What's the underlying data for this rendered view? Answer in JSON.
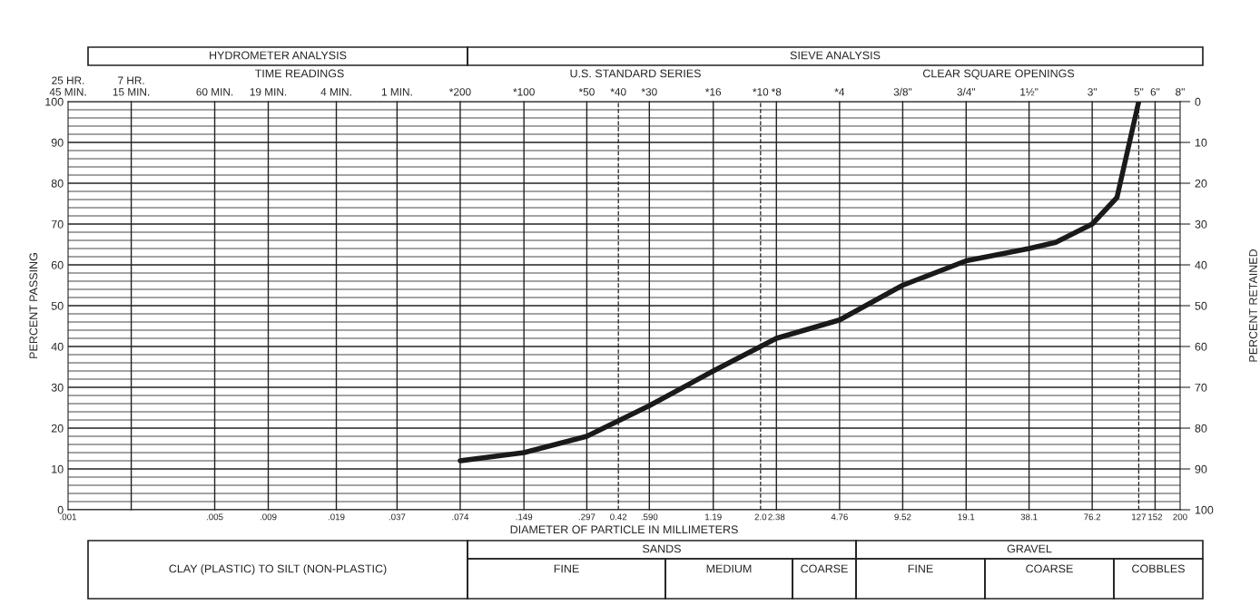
{
  "chart_data": {
    "type": "line",
    "xlabel": "DIAMETER OF PARTICLE IN MILLIMETERS",
    "ylabel": "PERCENT PASSING",
    "y2label": "PERCENT RETAINED",
    "log": "x",
    "grid": "y",
    "legend": false,
    "marker": "none",
    "line_style": "solid",
    "series": [
      {
        "color": "#1a1a1a",
        "x": [
          0.074,
          0.149,
          0.297,
          0.59,
          1.19,
          2.38,
          4.76,
          9.52,
          19.1,
          38.1,
          51,
          76.2,
          100,
          127
        ],
        "values": [
          12,
          14,
          18,
          25.5,
          34,
          42,
          46.5,
          55,
          61,
          64,
          65.5,
          70,
          76.5,
          100
        ]
      }
    ],
    "xlim": [
      0.001,
      200
    ],
    "xticks": [
      {
        "value": 0.001,
        "label": ".001"
      },
      {
        "value": 0.005,
        "label": ".005"
      },
      {
        "value": 0.009,
        "label": ".009"
      },
      {
        "value": 0.019,
        "label": ".019"
      },
      {
        "value": 0.037,
        "label": ".037"
      },
      {
        "value": 0.074,
        "label": ".074"
      },
      {
        "value": 0.149,
        "label": ".149"
      },
      {
        "value": 0.297,
        "label": ".297"
      },
      0.42,
      {
        "value": 0.59,
        "label": ".590"
      },
      1.19,
      {
        "value": 2.0,
        "label": "2.0"
      },
      2.38,
      4.76,
      9.52,
      19.1,
      38.1,
      76.2,
      127,
      152,
      200
    ],
    "ylim": [
      0,
      100
    ],
    "yticks": [
      0,
      {
        "value": 2,
        "label": null
      },
      {
        "value": 4,
        "label": null
      },
      {
        "value": 6,
        "label": null
      },
      {
        "value": 8,
        "label": null
      },
      10,
      {
        "value": 12,
        "label": null
      },
      {
        "value": 14,
        "label": null
      },
      {
        "value": 16,
        "label": null
      },
      {
        "value": 18,
        "label": null
      },
      20,
      {
        "value": 22,
        "label": null
      },
      {
        "value": 24,
        "label": null
      },
      {
        "value": 26,
        "label": null
      },
      {
        "value": 28,
        "label": null
      },
      30,
      {
        "value": 32,
        "label": null
      },
      {
        "value": 34,
        "label": null
      },
      {
        "value": 36,
        "label": null
      },
      {
        "value": 38,
        "label": null
      },
      40,
      {
        "value": 42,
        "label": null
      },
      {
        "value": 44,
        "label": null
      },
      {
        "value": 46,
        "label": null
      },
      {
        "value": 48,
        "label": null
      },
      50,
      {
        "value": 52,
        "label": null
      },
      {
        "value": 54,
        "label": null
      },
      {
        "value": 56,
        "label": null
      },
      {
        "value": 58,
        "label": null
      },
      60,
      {
        "value": 62,
        "label": null
      },
      {
        "value": 64,
        "label": null
      },
      {
        "value": 66,
        "label": null
      },
      {
        "value": 68,
        "label": null
      },
      70,
      {
        "value": 72,
        "label": null
      },
      {
        "value": 74,
        "label": null
      },
      {
        "value": 76,
        "label": null
      },
      {
        "value": 78,
        "label": null
      },
      80,
      {
        "value": 82,
        "label": null
      },
      {
        "value": 84,
        "label": null
      },
      {
        "value": 86,
        "label": null
      },
      {
        "value": 88,
        "label": null
      },
      90,
      {
        "value": 92,
        "label": null
      },
      {
        "value": 94,
        "label": null
      },
      {
        "value": 96,
        "label": null
      },
      {
        "value": 98,
        "label": null
      },
      100
    ],
    "y2lim": [
      100,
      0
    ],
    "y2ticks": [
      0,
      10,
      20,
      30,
      40,
      50,
      60,
      70,
      80,
      90,
      100
    ],
    "ref_lines": [
      {
        "axis": "x",
        "value": 0.002
      },
      {
        "axis": "x",
        "value": 0.005
      },
      {
        "axis": "x",
        "value": 0.009
      },
      {
        "axis": "x",
        "value": 0.019
      },
      {
        "axis": "x",
        "value": 0.037
      },
      {
        "axis": "x",
        "value": 0.074
      },
      {
        "axis": "x",
        "value": 0.149
      },
      {
        "axis": "x",
        "value": 0.297
      },
      {
        "axis": "x",
        "value": 0.42,
        "line_style": "dashed"
      },
      {
        "axis": "x",
        "value": 0.59
      },
      {
        "axis": "x",
        "value": 1.19
      },
      {
        "axis": "x",
        "value": 2.0,
        "line_style": "dashed"
      },
      {
        "axis": "x",
        "value": 2.38
      },
      {
        "axis": "x",
        "value": 4.76
      },
      {
        "axis": "x",
        "value": 9.52
      },
      {
        "axis": "x",
        "value": 19.1
      },
      {
        "axis": "x",
        "value": 38.1
      },
      {
        "axis": "x",
        "value": 76.2
      },
      {
        "axis": "x",
        "value": 127,
        "line_style": "dashed"
      },
      {
        "axis": "x",
        "value": 152
      }
    ],
    "annotations": [
      "HYDROMETER ANALYSIS",
      "SIEVE ANALYSIS",
      "TIME READINGS",
      "U.S. STANDARD SERIES",
      "CLEAR SQUARE OPENINGS",
      "CLAY (PLASTIC) TO SILT (NON-PLASTIC)",
      "SANDS",
      "FINE",
      "MEDIUM",
      "COARSE",
      "GRAVEL",
      "FINE",
      "COARSE",
      "COBBLES",
      "25 HR.\n45 MIN.",
      "8\"",
      {
        "text": "7 HR.\n15 MIN.",
        "x": 0.002,
        "y": 100
      },
      {
        "text": "60 MIN.",
        "x": 0.005,
        "y": 100
      },
      {
        "text": "19 MIN.",
        "x": 0.009,
        "y": 100
      },
      {
        "text": "4 MIN.",
        "x": 0.019,
        "y": 100
      },
      {
        "text": "1 MIN.",
        "x": 0.037,
        "y": 100
      },
      {
        "text": "*200",
        "x": 0.074,
        "y": 100
      },
      {
        "text": "*100",
        "x": 0.149,
        "y": 100
      },
      {
        "text": "*50",
        "x": 0.297,
        "y": 100
      },
      {
        "text": "*40",
        "x": 0.42,
        "y": 100
      },
      {
        "text": "*30",
        "x": 0.59,
        "y": 100
      },
      {
        "text": "*16",
        "x": 1.19,
        "y": 100
      },
      {
        "text": "*10",
        "x": 2.0,
        "y": 100
      },
      {
        "text": "*8",
        "x": 2.38,
        "y": 100
      },
      {
        "text": "*4",
        "x": 4.76,
        "y": 100
      },
      {
        "text": "3/8\"",
        "x": 9.52,
        "y": 100
      },
      {
        "text": "3/4\"",
        "x": 19.1,
        "y": 100
      },
      {
        "text": "1½\"",
        "x": 38.1,
        "y": 100
      },
      {
        "text": "3\"",
        "x": 76.2,
        "y": 100
      },
      {
        "text": "5\"",
        "x": 127,
        "y": 100
      },
      {
        "text": "6\"",
        "x": 152,
        "y": 100
      }
    ]
  }
}
